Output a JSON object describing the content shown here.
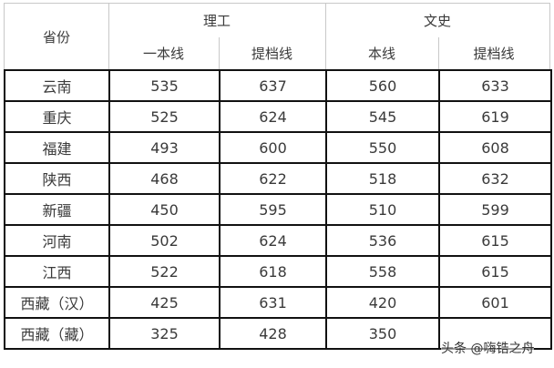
{
  "header": {
    "province": "省份",
    "groups": [
      {
        "label": "理工",
        "cols": [
          "一本线",
          "提档线"
        ]
      },
      {
        "label": "文史",
        "cols": [
          "本线",
          "提档线"
        ]
      }
    ]
  },
  "rows": [
    {
      "province": "云南",
      "values": [
        "535",
        "637",
        "560",
        "633"
      ]
    },
    {
      "province": "重庆",
      "values": [
        "525",
        "624",
        "545",
        "619"
      ]
    },
    {
      "province": "福建",
      "values": [
        "493",
        "600",
        "550",
        "608"
      ]
    },
    {
      "province": "陕西",
      "values": [
        "468",
        "622",
        "518",
        "632"
      ]
    },
    {
      "province": "新疆",
      "values": [
        "450",
        "595",
        "510",
        "599"
      ]
    },
    {
      "province": "河南",
      "values": [
        "502",
        "624",
        "536",
        "615"
      ]
    },
    {
      "province": "江西",
      "values": [
        "522",
        "618",
        "558",
        "615"
      ]
    },
    {
      "province": "西藏（汉）",
      "values": [
        "425",
        "631",
        "420",
        "601"
      ]
    },
    {
      "province": "西藏（藏）",
      "values": [
        "325",
        "428",
        "350",
        ""
      ]
    }
  ],
  "watermark": "头条 @嗨锆之舟"
}
